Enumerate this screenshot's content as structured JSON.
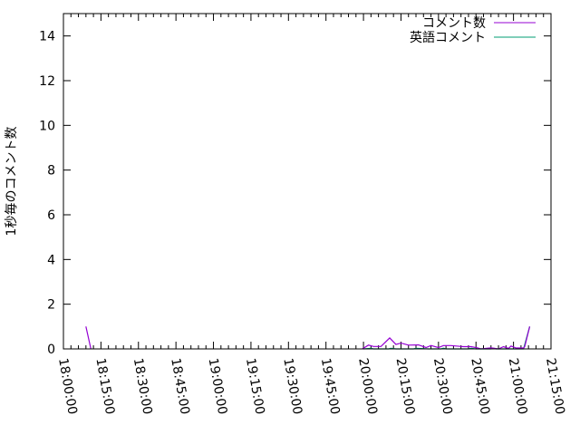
{
  "chart_data": {
    "type": "line",
    "title": "",
    "xlabel": "",
    "ylabel": "1秒毎のコメント数",
    "xlim": [
      "18:00:00",
      "21:15:00"
    ],
    "ylim": [
      0,
      15
    ],
    "x_ticks": [
      "18:00:00",
      "18:15:00",
      "18:30:00",
      "18:45:00",
      "19:00:00",
      "19:15:00",
      "19:30:00",
      "19:45:00",
      "20:00:00",
      "20:15:00",
      "20:30:00",
      "20:45:00",
      "21:00:00",
      "21:15:00"
    ],
    "y_ticks": [
      "0",
      "2",
      "4",
      "6",
      "8",
      "10",
      "12",
      "14"
    ],
    "grid": false,
    "legend_position": "top-right",
    "series": [
      {
        "name": "コメント数",
        "color": "#9400d3",
        "points": [
          [
            "18:09:00",
            1.0
          ],
          [
            "18:11:00",
            0
          ],
          [
            "19:59:30",
            0
          ],
          [
            "20:02:00",
            0.17
          ],
          [
            "20:04:00",
            0.11
          ],
          [
            "20:07:00",
            0.11
          ],
          [
            "20:10:30",
            0.49
          ],
          [
            "20:13:00",
            0.2
          ],
          [
            "20:15:00",
            0.26
          ],
          [
            "20:18:00",
            0.17
          ],
          [
            "20:22:00",
            0.18
          ],
          [
            "20:25:00",
            0.06
          ],
          [
            "20:27:00",
            0.15
          ],
          [
            "20:30:00",
            0.06
          ],
          [
            "20:32:00",
            0.15
          ],
          [
            "20:35:00",
            0.15
          ],
          [
            "20:40:00",
            0.1
          ],
          [
            "20:43:00",
            0.1
          ],
          [
            "20:45:30",
            0.05
          ],
          [
            "20:47:00",
            0
          ],
          [
            "20:51:00",
            0.05
          ],
          [
            "20:54:00",
            0
          ],
          [
            "20:56:00",
            0.1
          ],
          [
            "20:58:00",
            0.02
          ],
          [
            "20:59:00",
            0.13
          ],
          [
            "21:01:00",
            0.04
          ],
          [
            "21:04:00",
            0.04
          ],
          [
            "21:04:30",
            0.1
          ],
          [
            "21:06:30",
            1.0
          ]
        ]
      },
      {
        "name": "英語コメント",
        "color": "#009e73",
        "points": [
          [
            "20:00:00",
            0
          ],
          [
            "20:03:00",
            0.03
          ],
          [
            "20:04:00",
            0
          ],
          [
            "20:10:00",
            0
          ],
          [
            "20:11:00",
            0.03
          ],
          [
            "20:13:00",
            0
          ],
          [
            "20:20:00",
            0
          ],
          [
            "20:21:00",
            0.03
          ],
          [
            "20:26:00",
            0
          ],
          [
            "20:31:00",
            0
          ],
          [
            "20:32:00",
            0.03
          ],
          [
            "20:33:00",
            0
          ],
          [
            "20:42:00",
            0
          ],
          [
            "20:43:00",
            0.03
          ],
          [
            "20:45:00",
            0
          ],
          [
            "20:51:00",
            0
          ],
          [
            "20:52:00",
            0.03
          ],
          [
            "20:53:00",
            0
          ],
          [
            "21:04:00",
            0
          ],
          [
            "21:06:30",
            1.0
          ]
        ]
      }
    ]
  }
}
